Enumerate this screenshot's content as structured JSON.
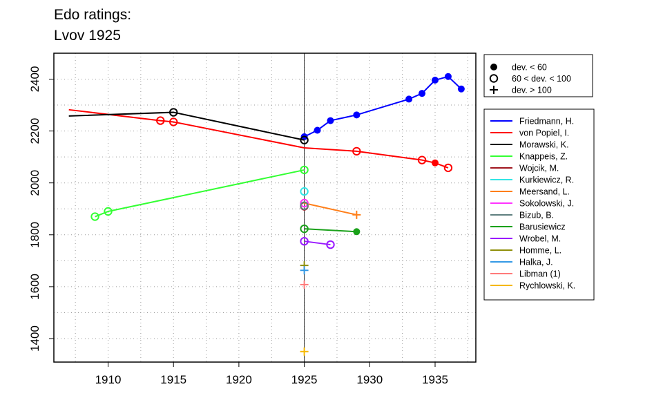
{
  "chart_data": {
    "type": "line",
    "title_lines": [
      "Edo ratings:",
      "Lvov 1925"
    ],
    "xlabel": "",
    "ylabel": "",
    "xlim": [
      1906,
      1938
    ],
    "ylim": [
      1350,
      2480
    ],
    "x_ticks": [
      1910,
      1915,
      1920,
      1925,
      1930,
      1935
    ],
    "y_ticks": [
      1400,
      1600,
      1800,
      2000,
      2200,
      2400
    ],
    "grid": true,
    "event_year": 1925,
    "symbol_legend": {
      "placement": "top-right",
      "entries": [
        {
          "symbol": "filled",
          "label": "dev. < 60"
        },
        {
          "symbol": "open",
          "label": "60 < dev. < 100"
        },
        {
          "symbol": "plus",
          "label": "dev. > 100"
        }
      ]
    },
    "legend_placement": "right",
    "series": [
      {
        "name": "Friedmann, H.",
        "color": "#0000ff",
        "points": [
          {
            "x": 1925,
            "y": 2178,
            "m": "filled"
          },
          {
            "x": 1926,
            "y": 2203,
            "m": "filled"
          },
          {
            "x": 1927,
            "y": 2240,
            "m": "filled"
          },
          {
            "x": 1929,
            "y": 2262,
            "m": "filled"
          },
          {
            "x": 1933,
            "y": 2323,
            "m": "filled"
          },
          {
            "x": 1934,
            "y": 2345,
            "m": "filled"
          },
          {
            "x": 1935,
            "y": 2396,
            "m": "filled"
          },
          {
            "x": 1936,
            "y": 2410,
            "m": "filled"
          },
          {
            "x": 1937,
            "y": 2362,
            "m": "filled"
          }
        ]
      },
      {
        "name": "von Popiel, I.",
        "color": "#ff0000",
        "points": [
          {
            "x": 1907,
            "y": 2282,
            "m": "none"
          },
          {
            "x": 1914,
            "y": 2240,
            "m": "open"
          },
          {
            "x": 1915,
            "y": 2235,
            "m": "open"
          },
          {
            "x": 1925,
            "y": 2135,
            "m": "none"
          },
          {
            "x": 1929,
            "y": 2122,
            "m": "open"
          },
          {
            "x": 1934,
            "y": 2088,
            "m": "open"
          },
          {
            "x": 1935,
            "y": 2077,
            "m": "filled"
          },
          {
            "x": 1936,
            "y": 2058,
            "m": "open"
          }
        ]
      },
      {
        "name": "Morawski, K.",
        "color": "#000000",
        "points": [
          {
            "x": 1907,
            "y": 2258,
            "m": "none"
          },
          {
            "x": 1915,
            "y": 2272,
            "m": "open"
          },
          {
            "x": 1925,
            "y": 2165,
            "m": "open"
          }
        ]
      },
      {
        "name": "Knappeis, Z.",
        "color": "#33ff33",
        "points": [
          {
            "x": 1909,
            "y": 1870,
            "m": "open"
          },
          {
            "x": 1910,
            "y": 1890,
            "m": "open"
          },
          {
            "x": 1925,
            "y": 2050,
            "m": "open"
          }
        ]
      },
      {
        "name": "Wojcik, M.",
        "color": "#a0151e",
        "points": [
          {
            "x": 1925,
            "y": 1910,
            "m": "open"
          }
        ]
      },
      {
        "name": "Kurkiewicz, R.",
        "color": "#33e5e5",
        "points": [
          {
            "x": 1925,
            "y": 1967,
            "m": "open"
          }
        ]
      },
      {
        "name": "Meersand, L.",
        "color": "#ff7f1a",
        "points": [
          {
            "x": 1925,
            "y": 1922,
            "m": "open"
          },
          {
            "x": 1929,
            "y": 1877,
            "m": "plus"
          }
        ]
      },
      {
        "name": "Sokolowski, J.",
        "color": "#ff33ff",
        "points": [
          {
            "x": 1925,
            "y": 1922,
            "m": "open"
          }
        ]
      },
      {
        "name": "Bizub, B.",
        "color": "#5f7f7f",
        "points": [
          {
            "x": 1925,
            "y": 1912,
            "m": "open"
          }
        ]
      },
      {
        "name": "Barusiewicz",
        "color": "#1aa11a",
        "points": [
          {
            "x": 1925,
            "y": 1823,
            "m": "open"
          },
          {
            "x": 1929,
            "y": 1812,
            "m": "filled"
          }
        ]
      },
      {
        "name": "Wrobel, M.",
        "color": "#9a1aff",
        "points": [
          {
            "x": 1925,
            "y": 1775,
            "m": "open"
          },
          {
            "x": 1927,
            "y": 1762,
            "m": "open"
          }
        ]
      },
      {
        "name": "Homme, L.",
        "color": "#8f8f0a",
        "points": [
          {
            "x": 1925,
            "y": 1682,
            "m": "plus"
          }
        ]
      },
      {
        "name": "Halka, J.",
        "color": "#3399e5",
        "points": [
          {
            "x": 1925,
            "y": 1663,
            "m": "plus"
          }
        ]
      },
      {
        "name": "Libman (1)",
        "color": "#ff7a7a",
        "points": [
          {
            "x": 1925,
            "y": 1608,
            "m": "plus"
          }
        ]
      },
      {
        "name": "Rychlowski, K.",
        "color": "#f5b800",
        "points": [
          {
            "x": 1925,
            "y": 1350,
            "m": "plus"
          }
        ]
      }
    ]
  }
}
